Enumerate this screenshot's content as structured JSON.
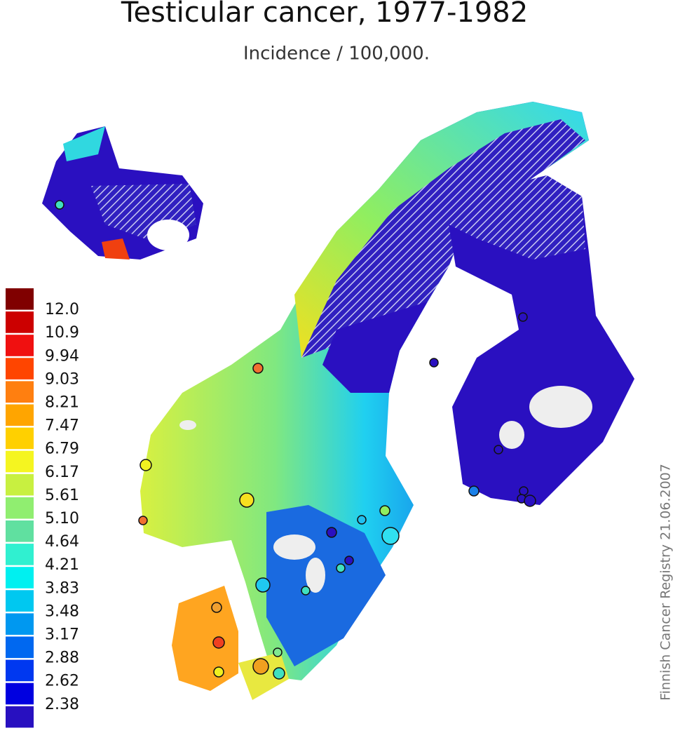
{
  "title": "Testicular cancer, 1977-1982",
  "subtitle": "Incidence / 100,000.",
  "legend": {
    "labels": [
      "12.0",
      "10.9",
      "9.94",
      "9.03",
      "8.21",
      "7.47",
      "6.79",
      "6.17",
      "5.61",
      "5.10",
      "4.64",
      "4.21",
      "3.83",
      "3.48",
      "3.17",
      "2.88",
      "2.62",
      "2.38"
    ],
    "colors": [
      "#800000",
      "#cc0000",
      "#f01010",
      "#ff4500",
      "#ff7f10",
      "#ffa500",
      "#ffd000",
      "#f5f520",
      "#c8f040",
      "#90ee70",
      "#60e0a0",
      "#30f0d0",
      "#00f0f0",
      "#00c8f0",
      "#0098f0",
      "#0068f0",
      "#0038f0",
      "#0000e0",
      "#2810c0"
    ]
  },
  "credit": "Finnish Cancer Registry 21.06.2007"
}
